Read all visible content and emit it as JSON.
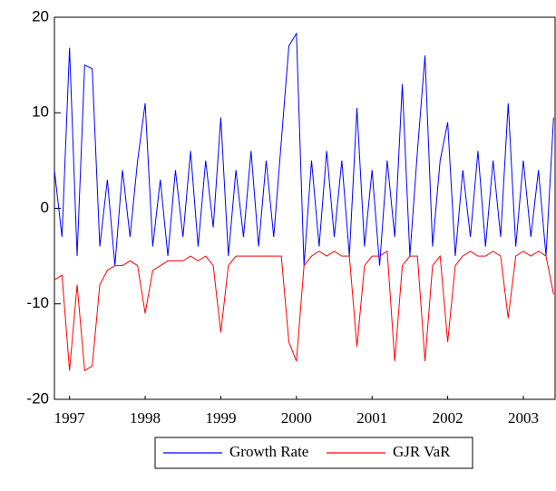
{
  "chart_data": {
    "type": "line",
    "x": [
      1997.3,
      1997.4,
      1997.5,
      1997.6,
      1997.7,
      1997.8,
      1997.9,
      1998.0,
      1998.1,
      1998.2,
      1998.3,
      1998.4,
      1998.5,
      1998.6,
      1998.7,
      1998.8,
      1998.9,
      1999.0,
      1999.1,
      1999.2,
      1999.3,
      1999.4,
      1999.5,
      1999.6,
      1999.7,
      1999.8,
      1999.9,
      2000.0,
      2000.1,
      2000.2,
      2000.3,
      2000.4,
      2000.5,
      2000.6,
      2000.7,
      2000.8,
      2000.9,
      2001.0,
      2001.1,
      2001.2,
      2001.3,
      2001.4,
      2001.5,
      2001.6,
      2001.7,
      2001.8,
      2001.9,
      2002.0,
      2002.1,
      2002.2,
      2002.3,
      2002.4,
      2002.5,
      2002.6,
      2002.7,
      2002.8,
      2002.9,
      2003.0,
      2003.1,
      2003.2,
      2003.3,
      2003.4,
      2003.5,
      2003.6,
      2003.7,
      2003.8,
      2003.9
    ],
    "series": [
      {
        "name": "Growth Rate",
        "color": "#0000ff",
        "values": [
          4,
          -3,
          16.8,
          -5,
          15,
          14.6,
          -4,
          3,
          -6,
          4,
          -3,
          5,
          11,
          -4,
          3,
          -5,
          4,
          -3,
          6,
          -4,
          5,
          -2,
          9.5,
          -5,
          4,
          -3,
          6,
          -4,
          5,
          -3,
          7,
          17,
          18.3,
          -6,
          5,
          -4,
          6,
          -3,
          5,
          -5,
          10.5,
          -4,
          4,
          -6,
          5,
          -3,
          13,
          -5,
          6,
          16,
          -4,
          5,
          9,
          -5,
          4,
          -3,
          6,
          -4,
          5,
          -3,
          11,
          -4,
          5,
          -3,
          4,
          -5,
          9.5
        ]
      },
      {
        "name": "GJR VaR",
        "color": "#ff0000",
        "values": [
          -7.5,
          -7,
          -17,
          -8,
          -17,
          -16.5,
          -8,
          -6.5,
          -6,
          -6,
          -5.5,
          -6,
          -11,
          -6.5,
          -6,
          -5.5,
          -5.5,
          -5.5,
          -5,
          -5.5,
          -5,
          -6,
          -13,
          -6,
          -5,
          -5,
          -5,
          -5,
          -5,
          -5,
          -5,
          -14,
          -16,
          -6,
          -5,
          -4.5,
          -5,
          -4.5,
          -5,
          -5,
          -14.5,
          -6,
          -5,
          -5,
          -4.5,
          -16,
          -6,
          -5,
          -5,
          -16,
          -6,
          -5,
          -14,
          -6,
          -5,
          -4.5,
          -5,
          -5,
          -4.5,
          -5,
          -11.5,
          -5,
          -4.5,
          -5,
          -4.5,
          -5,
          -9
        ]
      }
    ],
    "xlim": [
      1997.3,
      2003.92
    ],
    "xticks": [
      {
        "value": 1997.5,
        "label": "1997"
      },
      {
        "value": 1998.5,
        "label": "1998"
      },
      {
        "value": 1999.5,
        "label": "1999"
      },
      {
        "value": 2000.5,
        "label": "2000"
      },
      {
        "value": 2001.5,
        "label": "2001"
      },
      {
        "value": 2002.5,
        "label": "2002"
      },
      {
        "value": 2003.5,
        "label": "2003"
      }
    ],
    "ylim": [
      -20,
      20
    ],
    "yticks": [
      -20,
      -10,
      0,
      10,
      20
    ],
    "legend": "bottom"
  }
}
